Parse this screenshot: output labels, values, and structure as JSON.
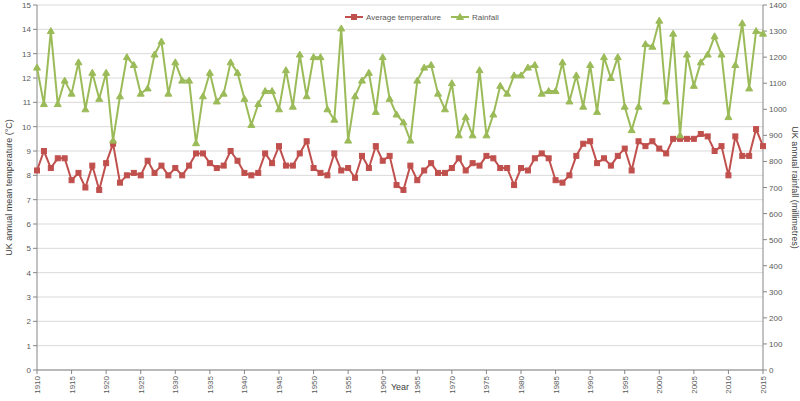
{
  "chart_data": {
    "type": "line",
    "x_label": "Year",
    "y_label": "UK annual mean temperature (°C)",
    "y2_label": "UK annual rainfall (millimetres)",
    "x": [
      1910,
      1911,
      1912,
      1913,
      1914,
      1915,
      1916,
      1917,
      1918,
      1919,
      1920,
      1921,
      1922,
      1923,
      1924,
      1925,
      1926,
      1927,
      1928,
      1929,
      1930,
      1931,
      1932,
      1933,
      1934,
      1935,
      1936,
      1937,
      1938,
      1939,
      1940,
      1941,
      1942,
      1943,
      1944,
      1945,
      1946,
      1947,
      1948,
      1949,
      1950,
      1951,
      1952,
      1953,
      1954,
      1955,
      1956,
      1957,
      1958,
      1959,
      1960,
      1961,
      1962,
      1963,
      1964,
      1965,
      1966,
      1967,
      1968,
      1969,
      1970,
      1971,
      1972,
      1973,
      1974,
      1975,
      1976,
      1977,
      1978,
      1979,
      1980,
      1981,
      1982,
      1983,
      1984,
      1985,
      1986,
      1987,
      1988,
      1989,
      1990,
      1991,
      1992,
      1993,
      1994,
      1995,
      1996,
      1997,
      1998,
      1999,
      2000,
      2001,
      2002,
      2003,
      2004,
      2005,
      2006,
      2007,
      2008,
      2009,
      2010,
      2011,
      2012,
      2013,
      2014,
      2015
    ],
    "series": [
      {
        "name": "Average temperature",
        "color": "#c0504d",
        "marker": "square",
        "values": [
          8.2,
          9.0,
          8.3,
          8.7,
          8.7,
          7.8,
          8.1,
          7.5,
          8.4,
          7.4,
          8.5,
          9.3,
          7.7,
          8.0,
          8.1,
          8.0,
          8.6,
          8.1,
          8.4,
          8.0,
          8.3,
          8.0,
          8.4,
          8.9,
          8.9,
          8.5,
          8.3,
          8.4,
          9.0,
          8.6,
          8.1,
          8.0,
          8.1,
          8.9,
          8.5,
          9.2,
          8.4,
          8.4,
          8.9,
          9.4,
          8.3,
          8.1,
          8.0,
          8.9,
          8.2,
          8.3,
          7.9,
          8.8,
          8.3,
          9.2,
          8.6,
          8.8,
          7.6,
          7.4,
          8.4,
          7.8,
          8.2,
          8.5,
          8.1,
          8.1,
          8.3,
          8.7,
          8.2,
          8.5,
          8.4,
          8.8,
          8.7,
          8.3,
          8.3,
          7.6,
          8.3,
          8.2,
          8.7,
          8.9,
          8.7,
          7.8,
          7.7,
          8.0,
          8.8,
          9.3,
          9.4,
          8.5,
          8.7,
          8.4,
          8.8,
          9.1,
          8.2,
          9.4,
          9.2,
          9.4,
          9.1,
          8.9,
          9.5,
          9.5,
          9.5,
          9.5,
          9.7,
          9.6,
          9.0,
          9.2,
          8.0,
          9.6,
          8.8,
          8.8,
          9.9,
          9.2
        ]
      },
      {
        "name": "Rainfall",
        "color": "#9bbb59",
        "marker": "triangle",
        "axis": "y2",
        "values": [
          1160,
          1020,
          1300,
          1020,
          1110,
          1060,
          1180,
          1000,
          1140,
          1040,
          1140,
          880,
          1050,
          1200,
          1170,
          1060,
          1080,
          1210,
          1260,
          1060,
          1180,
          1110,
          1110,
          870,
          1050,
          1140,
          1030,
          1060,
          1180,
          1140,
          1040,
          940,
          1020,
          1070,
          1070,
          1000,
          1150,
          1010,
          1210,
          1050,
          1200,
          1200,
          1000,
          960,
          1310,
          880,
          1050,
          1110,
          1140,
          990,
          1200,
          1040,
          980,
          950,
          880,
          1110,
          1160,
          1170,
          1060,
          1000,
          1100,
          900,
          970,
          900,
          1150,
          900,
          980,
          1090,
          1060,
          1130,
          1130,
          1160,
          1170,
          1060,
          1070,
          1070,
          1180,
          1030,
          1130,
          1010,
          1170,
          990,
          1200,
          1120,
          1200,
          1010,
          920,
          1010,
          1250,
          1240,
          1340,
          1030,
          1290,
          900,
          1210,
          1090,
          1180,
          1210,
          1280,
          1210,
          970,
          1170,
          1330,
          1080,
          1300,
          1290
        ]
      }
    ],
    "xlim": [
      1910,
      2015
    ],
    "xticks": [
      1910,
      1915,
      1920,
      1925,
      1930,
      1935,
      1940,
      1945,
      1950,
      1955,
      1960,
      1965,
      1970,
      1975,
      1980,
      1985,
      1990,
      1995,
      2000,
      2005,
      2010,
      2015
    ],
    "ylim": [
      0,
      15
    ],
    "yticks": [
      0,
      1,
      2,
      3,
      4,
      5,
      6,
      7,
      8,
      9,
      10,
      11,
      12,
      13,
      14,
      15
    ],
    "y2lim": [
      0,
      1400
    ],
    "y2ticks": [
      0,
      100,
      200,
      300,
      400,
      500,
      600,
      700,
      800,
      900,
      1000,
      1100,
      1200,
      1300,
      1400
    ],
    "grid": true,
    "legend": "top"
  }
}
